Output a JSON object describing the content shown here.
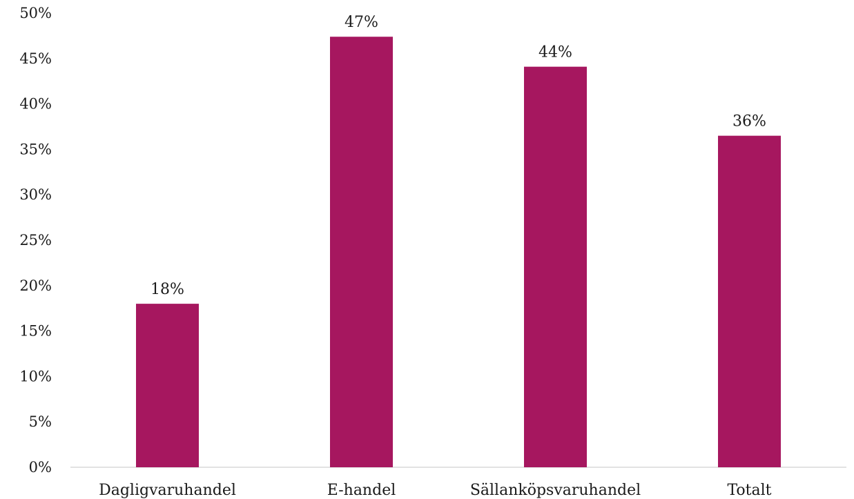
{
  "chart_data": {
    "type": "bar",
    "categories": [
      "Dagligvaruhandel",
      "E-handel",
      "Sällanköpsvaruhandel",
      "Totalt"
    ],
    "values": [
      18,
      47.4,
      44.1,
      36.5
    ],
    "data_labels": [
      "18%",
      "47%",
      "44%",
      "36%"
    ],
    "ylim": [
      0,
      50
    ],
    "yticks": [
      0,
      5,
      10,
      15,
      20,
      25,
      30,
      35,
      40,
      45,
      50
    ],
    "ytick_labels": [
      "0%",
      "5%",
      "10%",
      "15%",
      "20%",
      "25%",
      "30%",
      "35%",
      "40%",
      "45%",
      "50%"
    ],
    "grid": false,
    "bar_color": "#A6175F"
  }
}
